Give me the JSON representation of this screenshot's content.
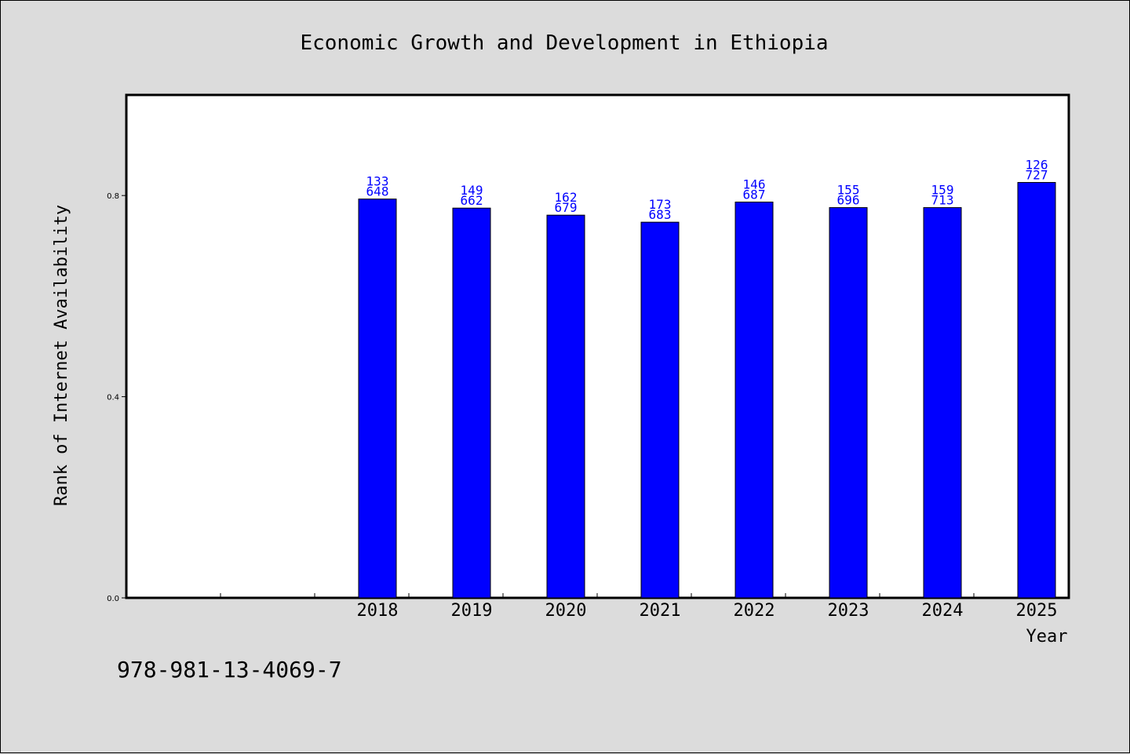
{
  "chart_data": {
    "type": "bar",
    "title": "Economic Growth and Development in Ethiopia",
    "xlabel": "Year",
    "ylabel": "Rank of Internet Availability",
    "categories": [
      "",
      "",
      "2018",
      "2019",
      "2020",
      "2021",
      "2022",
      "2023",
      "2024",
      "2025"
    ],
    "values": [
      null,
      null,
      0.793,
      0.775,
      0.761,
      0.747,
      0.787,
      0.776,
      0.776,
      0.826
    ],
    "data_labels": [
      null,
      null,
      [
        "133",
        "648"
      ],
      [
        "149",
        "662"
      ],
      [
        "162",
        "679"
      ],
      [
        "173",
        "683"
      ],
      [
        "146",
        "687"
      ],
      [
        "155",
        "696"
      ],
      [
        "159",
        "713"
      ],
      [
        "126",
        "727"
      ]
    ],
    "yticks": [
      "0.0",
      "0.4",
      "0.8"
    ],
    "ylim": [
      0,
      1.0
    ],
    "grid": false,
    "bar_color": "#0000ff",
    "label_color": "#0000ff"
  },
  "footer": {
    "isbn": "978-981-13-4069-7"
  }
}
